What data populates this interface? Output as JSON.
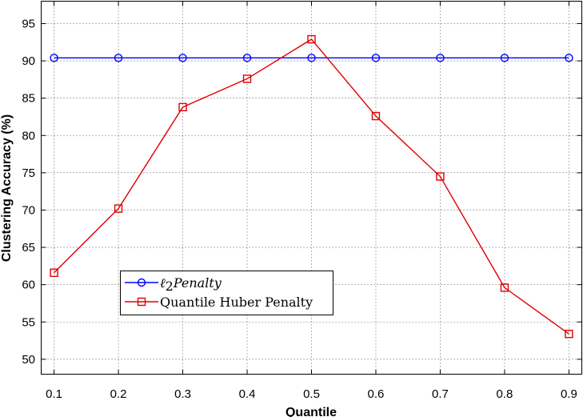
{
  "chart_data": {
    "type": "line",
    "title": "",
    "xlabel": "Quantile",
    "ylabel": "Clustering Accuracy (%)",
    "x": [
      0.1,
      0.2,
      0.3,
      0.4,
      0.5,
      0.6,
      0.7,
      0.8,
      0.9
    ],
    "x_tick_labels": [
      "0.1",
      "0.2",
      "0.3",
      "0.4",
      "0.5",
      "0.6",
      "0.7",
      "0.8",
      "0.9"
    ],
    "xlim": [
      0.08,
      0.92
    ],
    "ylim": [
      48,
      98
    ],
    "y_ticks": [
      50,
      55,
      60,
      65,
      70,
      75,
      80,
      85,
      90,
      95
    ],
    "y_tick_labels": [
      "50",
      "55",
      "60",
      "65",
      "70",
      "75",
      "80",
      "85",
      "90",
      "95"
    ],
    "grid": true,
    "legend_position": "lower-left",
    "series": [
      {
        "name_main": "ℓ",
        "name_sub": "2",
        "name_rest": "Penalty",
        "color": "#0000ff",
        "marker": "circle",
        "values": [
          90.4,
          90.4,
          90.4,
          90.4,
          90.4,
          90.4,
          90.4,
          90.4,
          90.4
        ]
      },
      {
        "name": "Quantile Huber Penalty",
        "color": "#e00000",
        "marker": "square",
        "values": [
          61.6,
          70.2,
          83.8,
          87.6,
          92.9,
          82.6,
          74.5,
          59.6,
          53.4
        ]
      }
    ]
  }
}
